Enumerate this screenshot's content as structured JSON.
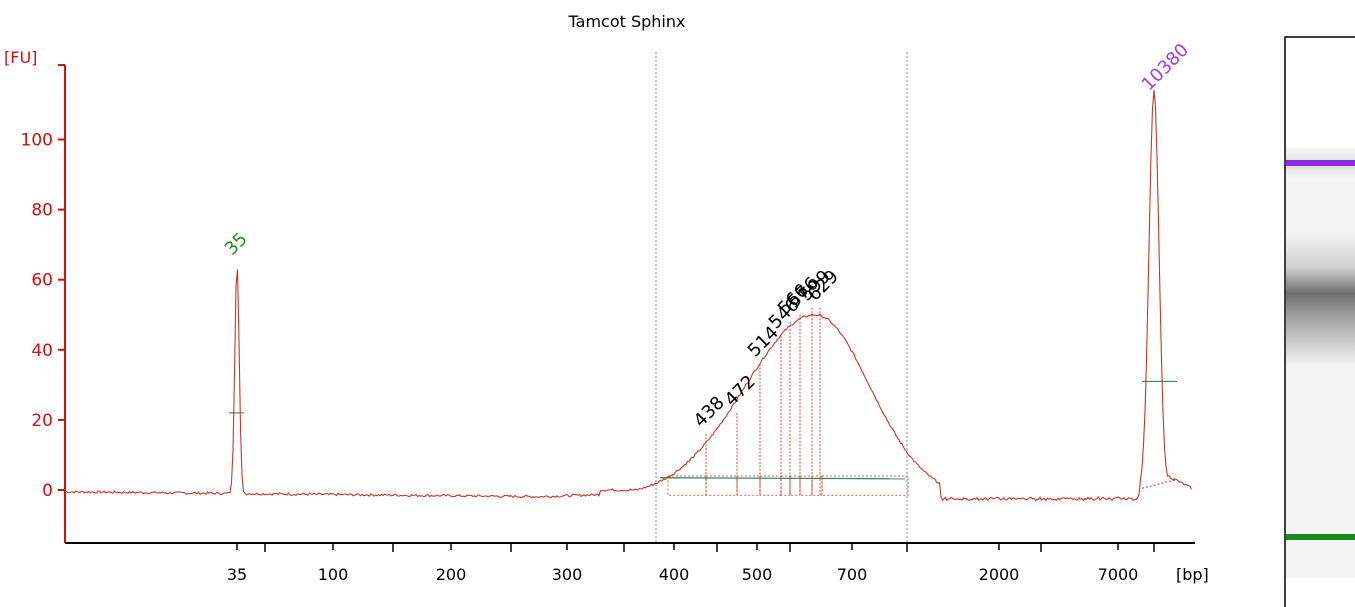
{
  "chart_data": {
    "type": "line",
    "title": "Tamcot Sphinx",
    "ylabel": "[FU]",
    "xlabel": "[bp]",
    "ylim": [
      -15,
      120
    ],
    "y_ticks": [
      0,
      20,
      40,
      60,
      80,
      100
    ],
    "x_tick_labels": [
      "35",
      "100",
      "200",
      "300",
      "400",
      "500",
      "700",
      "2000",
      "7000"
    ],
    "x_minor_ticks_unlabeled": 3,
    "series": [
      {
        "points_bp_fu": [
          [
            "34",
            0
          ],
          [
            "35",
            65
          ],
          [
            "36",
            0
          ],
          [
            "300",
            -1.5
          ],
          [
            "380",
            2
          ],
          [
            "420",
            12
          ],
          [
            "438",
            16
          ],
          [
            "472",
            22
          ],
          [
            "514",
            36
          ],
          [
            "546",
            44
          ],
          [
            "566",
            48
          ],
          [
            "576",
            50
          ],
          [
            "600",
            52
          ],
          [
            "629",
            52
          ],
          [
            "700",
            40
          ],
          [
            "800",
            18
          ],
          [
            "950",
            2
          ],
          [
            "1100",
            -2
          ],
          [
            "7000",
            -2
          ],
          [
            "10380",
            112
          ],
          [
            "11000",
            0
          ]
        ]
      }
    ],
    "peaks": [
      {
        "label": "35",
        "fu": 65,
        "color": "#2e8b2e"
      },
      {
        "label": "438",
        "fu": 16
      },
      {
        "label": "472",
        "fu": 22
      },
      {
        "label": "514",
        "fu": 36
      },
      {
        "label": "546",
        "fu": 44
      },
      {
        "label": "566",
        "fu": 48
      },
      {
        "label": "576",
        "fu": 50
      },
      {
        "label": "599",
        "fu": 52
      },
      {
        "label": "629",
        "fu": 52
      },
      {
        "label": "10380",
        "fu": 112,
        "color": "#a040e0"
      }
    ],
    "region_markers_bp": [
      "~380",
      "~1000"
    ],
    "grid": false,
    "colors": {
      "trace": "#c0392b",
      "axis": "#d01010",
      "tick_text": "#000000",
      "lower_marker": "#2e8b2e",
      "upper_marker": "#a040e0",
      "region_line": "#8080c0",
      "baseline": "#2e7d5e"
    }
  },
  "gel_lane": {
    "bands": [
      {
        "name": "upper-marker-band",
        "color": "#8a2be2"
      },
      {
        "name": "sample-smear",
        "color": "#6e6e6e"
      },
      {
        "name": "lower-marker-band",
        "color": "#1a8a1a"
      }
    ]
  }
}
